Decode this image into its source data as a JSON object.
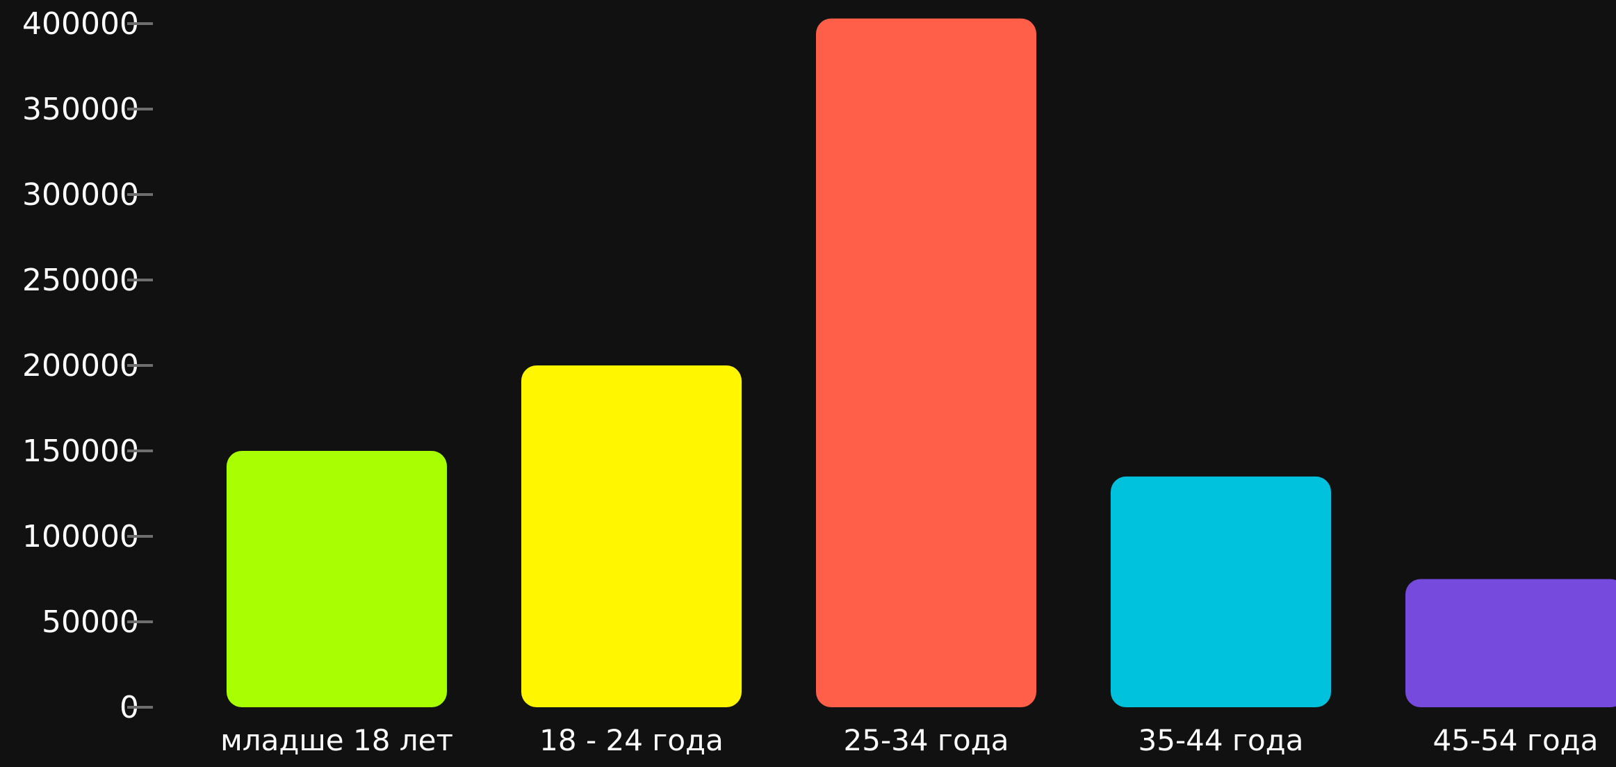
{
  "chart_data": {
    "type": "bar",
    "categories": [
      "младше 18 лет",
      "18 - 24 года",
      "25-34 года",
      "35-44 года",
      "45-54 года"
    ],
    "values": [
      150000,
      200000,
      403000,
      135000,
      75000
    ],
    "colors": [
      "#a8ff00",
      "#fff600",
      "#ff5e48",
      "#00c2dd",
      "#774ade"
    ],
    "ylim": [
      0,
      400000
    ],
    "yticks": [
      0,
      50000,
      100000,
      150000,
      200000,
      250000,
      300000,
      350000,
      400000
    ],
    "ytick_labels": [
      "0",
      "50000",
      "100000",
      "150000",
      "200000",
      "250000",
      "300000",
      "350000",
      "400000"
    ],
    "title": "",
    "xlabel": "",
    "ylabel": "",
    "grid": false,
    "legend": "none",
    "background": "#111111",
    "tick_color": "#6e6e6e",
    "text_color": "#ffffff"
  }
}
